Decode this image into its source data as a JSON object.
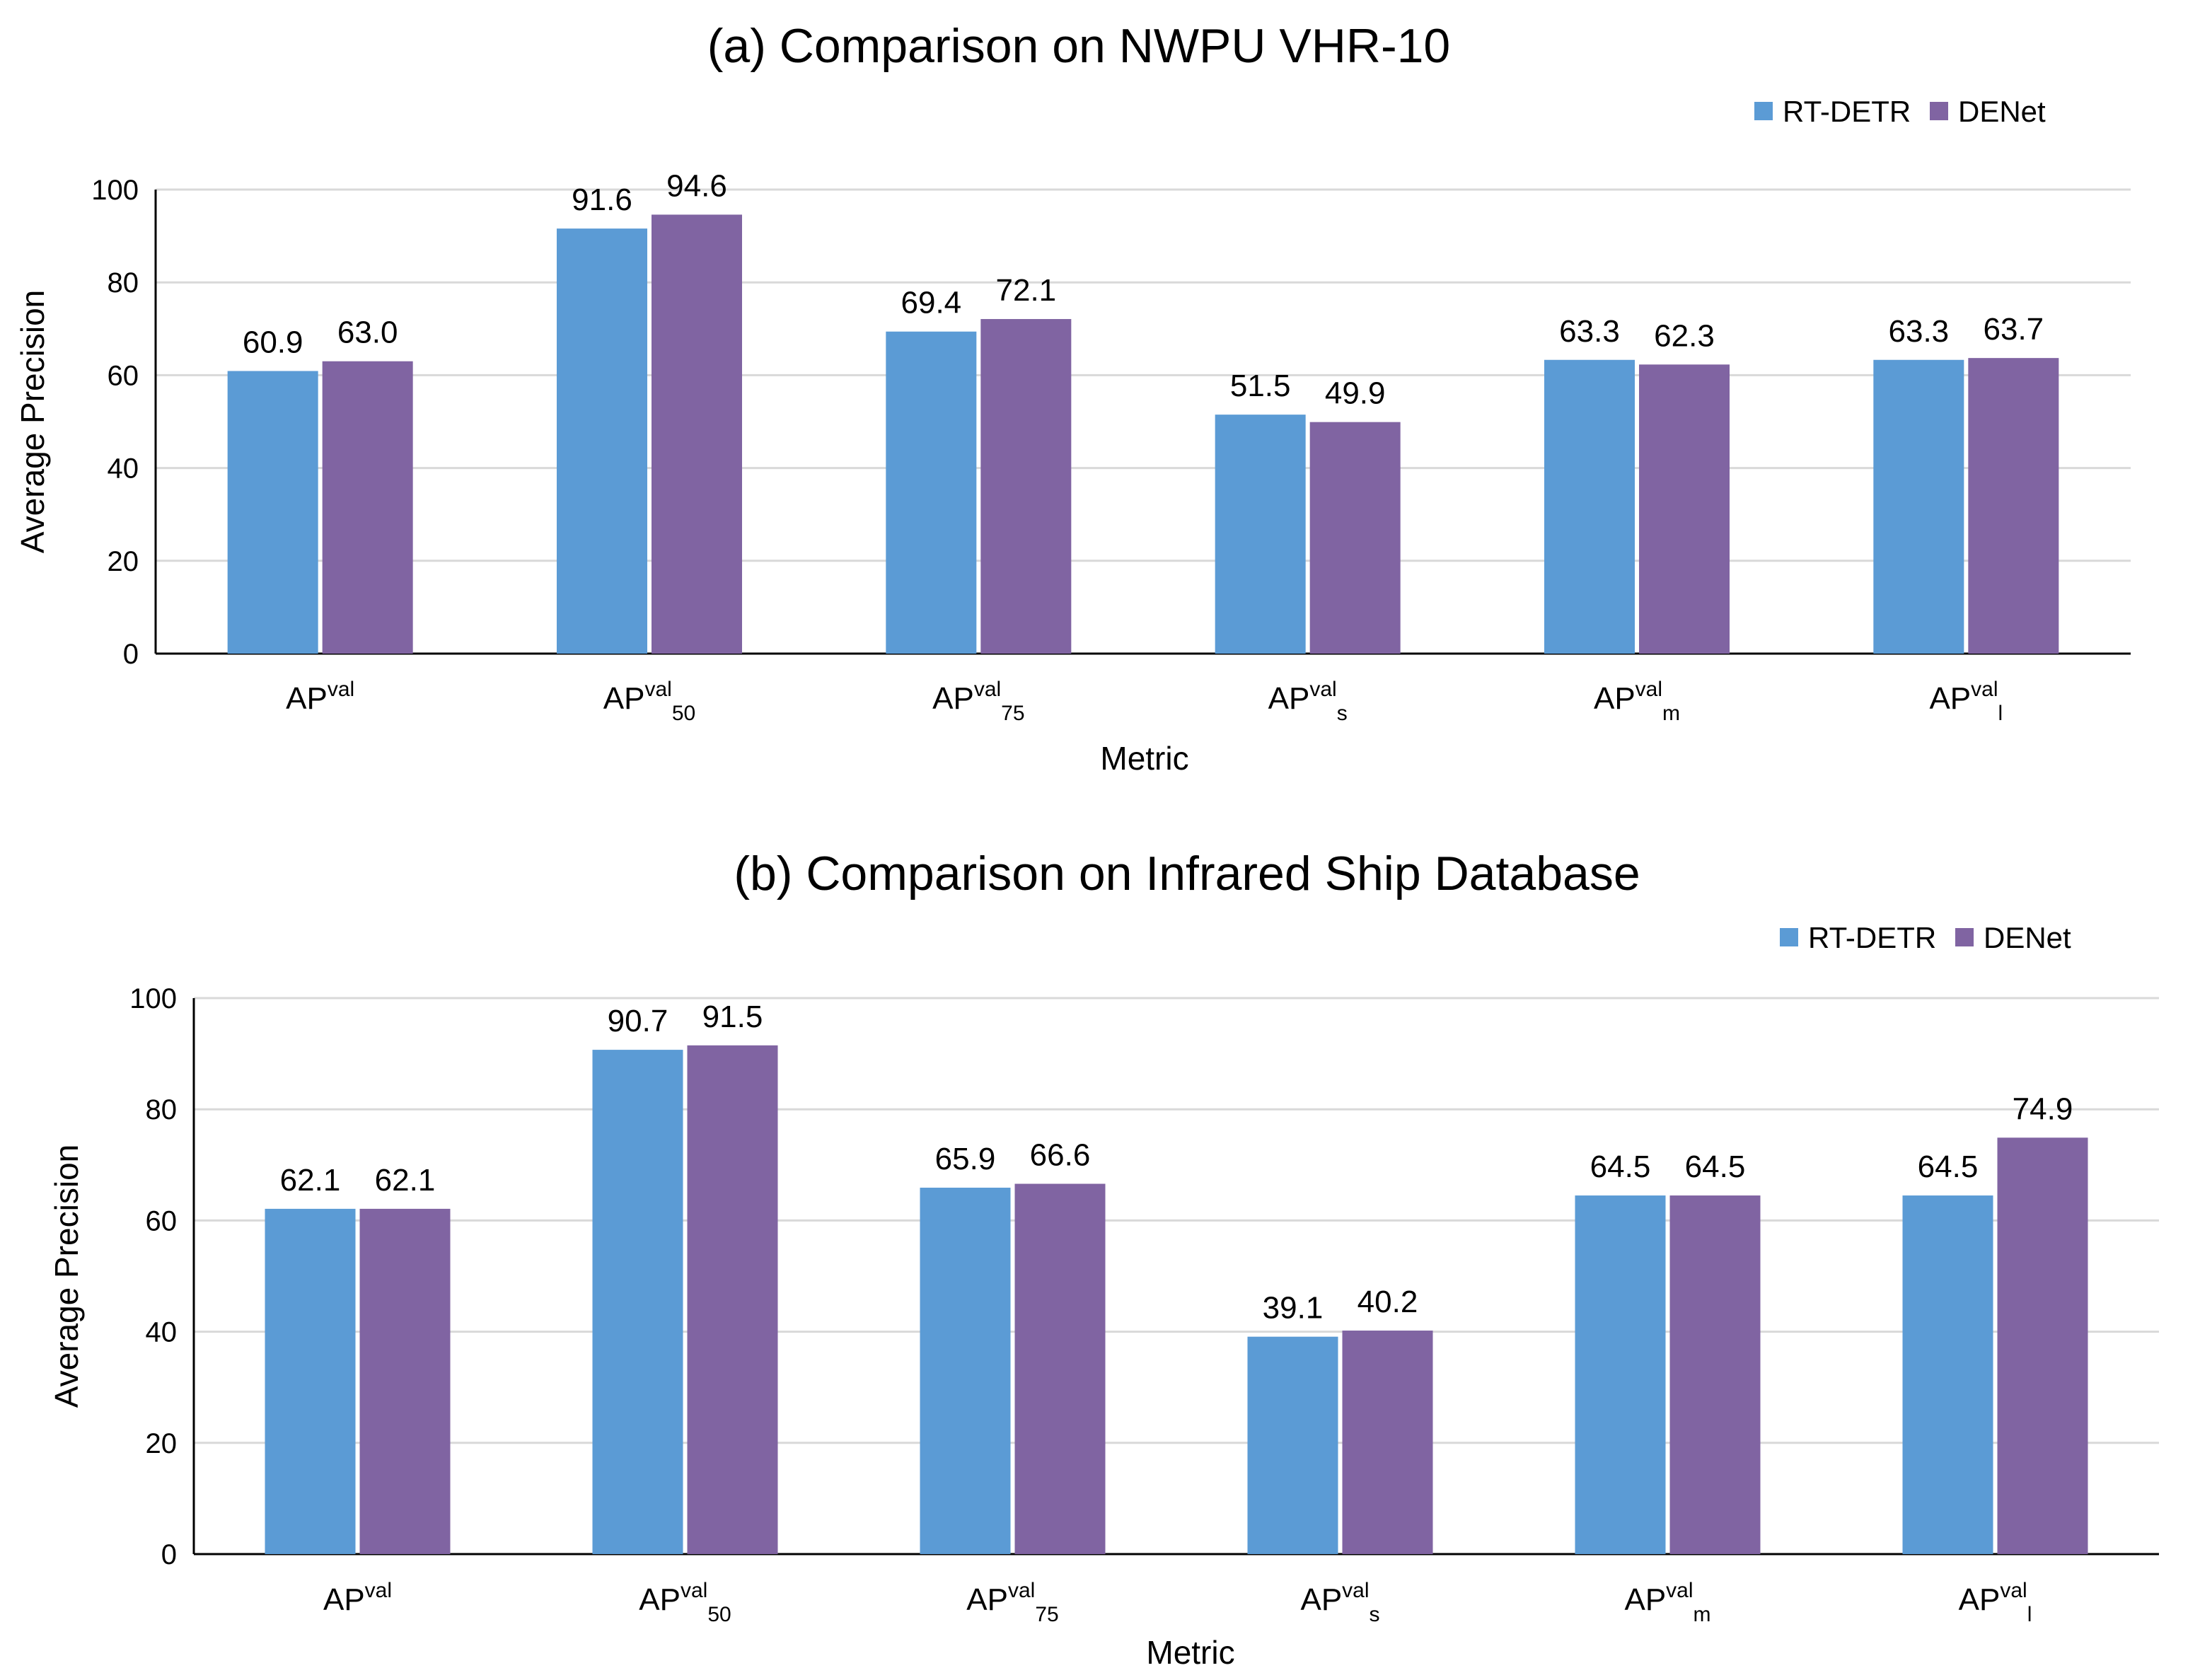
{
  "chart_data": [
    {
      "type": "bar",
      "title": "(a) Comparison on NWPU VHR-10",
      "xlabel": "Metric",
      "ylabel": "Average Precision",
      "ylim": [
        0,
        100
      ],
      "yticks": [
        0,
        20,
        40,
        60,
        80,
        100
      ],
      "grid": true,
      "legend_position": "top-right",
      "categories": [
        {
          "base": "AP",
          "sup": "val",
          "sub": ""
        },
        {
          "base": "AP",
          "sup": "val",
          "sub": "50"
        },
        {
          "base": "AP",
          "sup": "val",
          "sub": "75"
        },
        {
          "base": "AP",
          "sup": "val",
          "sub": "s"
        },
        {
          "base": "AP",
          "sup": "val",
          "sub": "m"
        },
        {
          "base": "AP",
          "sup": "val",
          "sub": "l"
        }
      ],
      "series": [
        {
          "name": "RT-DETR",
          "color": "#5b9bd5",
          "values": [
            60.9,
            91.6,
            69.4,
            51.5,
            63.3,
            63.3
          ],
          "labels": [
            "60.9",
            "91.6",
            "69.4",
            "51.5",
            "63.3",
            "63.3"
          ]
        },
        {
          "name": "DENet",
          "color": "#8064a2",
          "values": [
            63.0,
            94.6,
            72.1,
            49.9,
            62.3,
            63.7
          ],
          "labels": [
            "63.0",
            "94.6",
            "72.1",
            "49.9",
            "62.3",
            "63.7"
          ]
        }
      ]
    },
    {
      "type": "bar",
      "title": "(b) Comparison on Infrared Ship Database",
      "xlabel": "Metric",
      "ylabel": "Average Precision",
      "ylim": [
        0,
        100
      ],
      "yticks": [
        0,
        20,
        40,
        60,
        80,
        100
      ],
      "grid": true,
      "legend_position": "top-right",
      "categories": [
        {
          "base": "AP",
          "sup": "val",
          "sub": ""
        },
        {
          "base": "AP",
          "sup": "val",
          "sub": "50"
        },
        {
          "base": "AP",
          "sup": "val",
          "sub": "75"
        },
        {
          "base": "AP",
          "sup": "val",
          "sub": "s"
        },
        {
          "base": "AP",
          "sup": "val",
          "sub": "m"
        },
        {
          "base": "AP",
          "sup": "val",
          "sub": "l"
        }
      ],
      "series": [
        {
          "name": "RT-DETR",
          "color": "#5b9bd5",
          "values": [
            62.1,
            90.7,
            65.9,
            39.1,
            64.5,
            64.5
          ],
          "labels": [
            "62.1",
            "90.7",
            "65.9",
            "39.1",
            "64.5",
            "64.5"
          ]
        },
        {
          "name": "DENet",
          "color": "#8064a2",
          "values": [
            62.1,
            91.5,
            66.6,
            40.2,
            64.5,
            74.9
          ],
          "labels": [
            "62.1",
            "91.5",
            "66.6",
            "40.2",
            "64.5",
            "74.9"
          ]
        }
      ]
    }
  ]
}
